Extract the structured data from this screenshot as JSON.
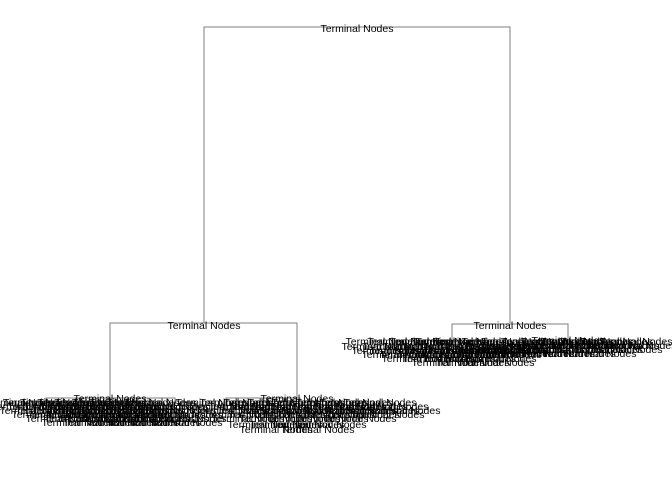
{
  "diagram": {
    "node_label": "Terminal Nodes",
    "line_color": "#7f7f7f",
    "text_color": "#000000",
    "background": "#ffffff"
  }
}
